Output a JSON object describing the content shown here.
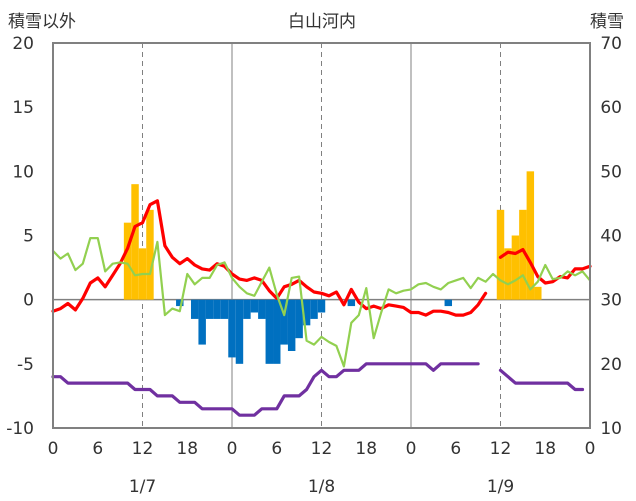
{
  "chart_data": {
    "type": "bar+line",
    "title": "白山河内",
    "ylabel_left": "積雪以外",
    "ylabel_right": "積雪",
    "y_left": {
      "min": -10,
      "max": 20,
      "ticks": [
        "20",
        "15",
        "10",
        "5",
        "0",
        "-5",
        "-10"
      ]
    },
    "y_right": {
      "min": 10,
      "max": 70,
      "ticks": [
        "70",
        "60",
        "50",
        "40",
        "30",
        "20",
        "10"
      ]
    },
    "x_hours": {
      "min": 0,
      "max": 72
    },
    "x_ticks": [
      "0",
      "6",
      "12",
      "18",
      "0",
      "6",
      "12",
      "18",
      "0",
      "6",
      "12",
      "18",
      "0"
    ],
    "day_labels": [
      "1/7",
      "1/8",
      "1/9"
    ],
    "grid": {
      "dashed_hours": [
        12,
        36,
        60
      ],
      "solid_hours": [
        24,
        48
      ],
      "zero_line": true
    },
    "colors": {
      "orange": "#ffc000",
      "blue": "#0070c0",
      "red": "#ff0000",
      "green": "#92d050",
      "purple": "#7030a0",
      "frame": "#808080",
      "grid": "#808080"
    },
    "series": [
      {
        "kind": "bar",
        "color": "orange",
        "points": [
          [
            10,
            6
          ],
          [
            11,
            9
          ],
          [
            12,
            4
          ],
          [
            13,
            7
          ],
          [
            60,
            7
          ],
          [
            61,
            4
          ],
          [
            62,
            5
          ],
          [
            63,
            7
          ],
          [
            64,
            10
          ],
          [
            65,
            1
          ]
        ]
      },
      {
        "kind": "bar",
        "color": "blue",
        "points": [
          [
            17,
            -0.5
          ],
          [
            19,
            -1.5
          ],
          [
            20,
            -3.5
          ],
          [
            21,
            -1.5
          ],
          [
            22,
            -1.5
          ],
          [
            23,
            -1.5
          ],
          [
            24,
            -4.5
          ],
          [
            25,
            -5
          ],
          [
            26,
            -1.5
          ],
          [
            27,
            -1
          ],
          [
            28,
            -1.5
          ],
          [
            29,
            -5
          ],
          [
            30,
            -5
          ],
          [
            31,
            -3.5
          ],
          [
            32,
            -4
          ],
          [
            33,
            -3
          ],
          [
            34,
            -2
          ],
          [
            35,
            -1.5
          ],
          [
            36,
            -1
          ],
          [
            40,
            -0.5
          ],
          [
            53,
            -0.5
          ]
        ]
      },
      {
        "kind": "line",
        "color": "red",
        "points": [
          [
            0,
            -0.9
          ],
          [
            1,
            -0.7
          ],
          [
            2,
            -0.3
          ],
          [
            3,
            -0.8
          ],
          [
            4,
            0.1
          ],
          [
            5,
            1.3
          ],
          [
            6,
            1.7
          ],
          [
            7,
            1.0
          ],
          [
            8,
            1.9
          ],
          [
            9,
            2.8
          ],
          [
            10,
            4.0
          ],
          [
            11,
            5.7
          ],
          [
            12,
            6.0
          ],
          [
            13,
            7.4
          ],
          [
            14,
            7.7
          ],
          [
            15,
            4.2
          ],
          [
            16,
            3.3
          ],
          [
            17,
            2.8
          ],
          [
            18,
            3.2
          ],
          [
            19,
            2.7
          ],
          [
            20,
            2.4
          ],
          [
            21,
            2.3
          ],
          [
            22,
            2.8
          ],
          [
            23,
            2.6
          ],
          [
            24,
            2.0
          ],
          [
            25,
            1.6
          ],
          [
            26,
            1.5
          ],
          [
            27,
            1.7
          ],
          [
            28,
            1.5
          ],
          [
            29,
            0.7
          ],
          [
            30,
            0.1
          ],
          [
            31,
            1.0
          ],
          [
            32,
            1.2
          ],
          [
            33,
            1.5
          ],
          [
            34,
            1.0
          ],
          [
            35,
            0.6
          ],
          [
            36,
            0.5
          ],
          [
            37,
            0.3
          ],
          [
            38,
            0.6
          ],
          [
            39,
            -0.4
          ],
          [
            40,
            0.8
          ],
          [
            41,
            -0.2
          ],
          [
            42,
            -0.7
          ],
          [
            43,
            -0.5
          ],
          [
            44,
            -0.7
          ],
          [
            45,
            -0.4
          ],
          [
            46,
            -0.5
          ],
          [
            47,
            -0.6
          ],
          [
            48,
            -1.0
          ],
          [
            49,
            -1.0
          ],
          [
            50,
            -1.2
          ],
          [
            51,
            -0.9
          ],
          [
            52,
            -0.9
          ],
          [
            53,
            -1.0
          ],
          [
            54,
            -1.2
          ],
          [
            55,
            -1.2
          ],
          [
            56,
            -1.0
          ],
          [
            57,
            -0.4
          ],
          [
            58,
            0.5
          ],
          null,
          [
            60,
            3.3
          ],
          [
            61,
            3.7
          ],
          [
            62,
            3.6
          ],
          [
            63,
            3.9
          ],
          [
            64,
            2.9
          ],
          [
            65,
            1.8
          ],
          [
            66,
            1.3
          ],
          [
            67,
            1.4
          ],
          [
            68,
            1.8
          ],
          [
            69,
            1.7
          ],
          [
            70,
            2.4
          ],
          [
            71,
            2.4
          ],
          [
            72,
            2.6
          ]
        ]
      },
      {
        "kind": "line",
        "color": "green",
        "points": [
          [
            0,
            3.8
          ],
          [
            1,
            3.2
          ],
          [
            2,
            3.6
          ],
          [
            3,
            2.3
          ],
          [
            4,
            2.8
          ],
          [
            5,
            4.8
          ],
          [
            6,
            4.8
          ],
          [
            7,
            2.2
          ],
          [
            8,
            2.8
          ],
          [
            9,
            2.9
          ],
          [
            10,
            2.8
          ],
          [
            11,
            1.9
          ],
          [
            12,
            2.0
          ],
          [
            13,
            2.0
          ],
          [
            14,
            4.5
          ],
          [
            15,
            -1.2
          ],
          [
            16,
            -0.7
          ],
          [
            17,
            -0.9
          ],
          [
            18,
            2.0
          ],
          [
            19,
            1.2
          ],
          [
            20,
            1.7
          ],
          [
            21,
            1.7
          ],
          [
            22,
            2.7
          ],
          [
            23,
            2.9
          ],
          [
            24,
            1.7
          ],
          [
            25,
            1.0
          ],
          [
            26,
            0.5
          ],
          [
            27,
            0.3
          ],
          [
            28,
            1.4
          ],
          [
            29,
            2.5
          ],
          [
            30,
            0.4
          ],
          [
            31,
            -1.2
          ],
          [
            32,
            1.7
          ],
          [
            33,
            1.8
          ],
          [
            34,
            -3.2
          ],
          [
            35,
            -3.5
          ],
          [
            36,
            -2.9
          ],
          [
            37,
            -3.3
          ],
          [
            38,
            -3.6
          ],
          [
            39,
            -5.2
          ],
          [
            40,
            -1.8
          ],
          [
            41,
            -1.2
          ],
          [
            42,
            0.9
          ],
          [
            43,
            -3.0
          ],
          [
            44,
            -1.0
          ],
          [
            45,
            0.8
          ],
          [
            46,
            0.5
          ],
          [
            47,
            0.7
          ],
          [
            48,
            0.8
          ],
          [
            49,
            1.2
          ],
          [
            50,
            1.3
          ],
          [
            51,
            1.0
          ],
          [
            52,
            0.8
          ],
          [
            53,
            1.3
          ],
          [
            54,
            1.5
          ],
          [
            55,
            1.7
          ],
          [
            56,
            0.9
          ],
          [
            57,
            1.7
          ],
          [
            58,
            1.4
          ],
          [
            59,
            2.0
          ],
          [
            60,
            1.5
          ],
          [
            61,
            1.2
          ],
          [
            62,
            1.5
          ],
          [
            63,
            1.9
          ],
          [
            64,
            0.8
          ],
          [
            65,
            1.4
          ],
          [
            66,
            2.7
          ],
          [
            67,
            1.6
          ],
          [
            68,
            1.7
          ],
          [
            69,
            2.2
          ],
          [
            70,
            1.9
          ],
          [
            71,
            2.2
          ],
          [
            72,
            1.5
          ]
        ]
      },
      {
        "kind": "line",
        "color": "purple",
        "points": [
          [
            0,
            -6
          ],
          [
            1,
            -6
          ],
          [
            2,
            -6.5
          ],
          [
            5,
            -6.5
          ],
          [
            10,
            -6.5
          ],
          [
            11,
            -7
          ],
          [
            13,
            -7
          ],
          [
            14,
            -7.5
          ],
          [
            16,
            -7.5
          ],
          [
            17,
            -8
          ],
          [
            19,
            -8
          ],
          [
            20,
            -8.5
          ],
          [
            22,
            -8.5
          ],
          [
            23,
            -8.5
          ],
          [
            24,
            -8.5
          ],
          [
            25,
            -9
          ],
          [
            27,
            -9
          ],
          [
            28,
            -8.5
          ],
          [
            30,
            -8.5
          ],
          [
            31,
            -7.5
          ],
          [
            33,
            -7.5
          ],
          [
            34,
            -7
          ],
          [
            35,
            -6
          ],
          [
            36,
            -5.5
          ],
          [
            37,
            -6
          ],
          [
            38,
            -6
          ],
          [
            39,
            -5.5
          ],
          [
            41,
            -5.5
          ],
          [
            42,
            -5
          ],
          [
            45,
            -5
          ],
          [
            47,
            -5
          ],
          [
            48,
            -5
          ],
          [
            50,
            -5
          ],
          [
            51,
            -5.5
          ],
          [
            52,
            -5
          ],
          [
            54,
            -5
          ],
          [
            56,
            -5
          ],
          [
            57,
            -5
          ],
          null,
          [
            60,
            -5.5
          ],
          [
            61,
            -6
          ],
          [
            62,
            -6.5
          ],
          [
            64,
            -6.5
          ],
          [
            66,
            -6.5
          ],
          [
            68,
            -6.5
          ],
          [
            69,
            -6.5
          ],
          [
            70,
            -7
          ],
          [
            71,
            -7
          ]
        ]
      }
    ]
  }
}
